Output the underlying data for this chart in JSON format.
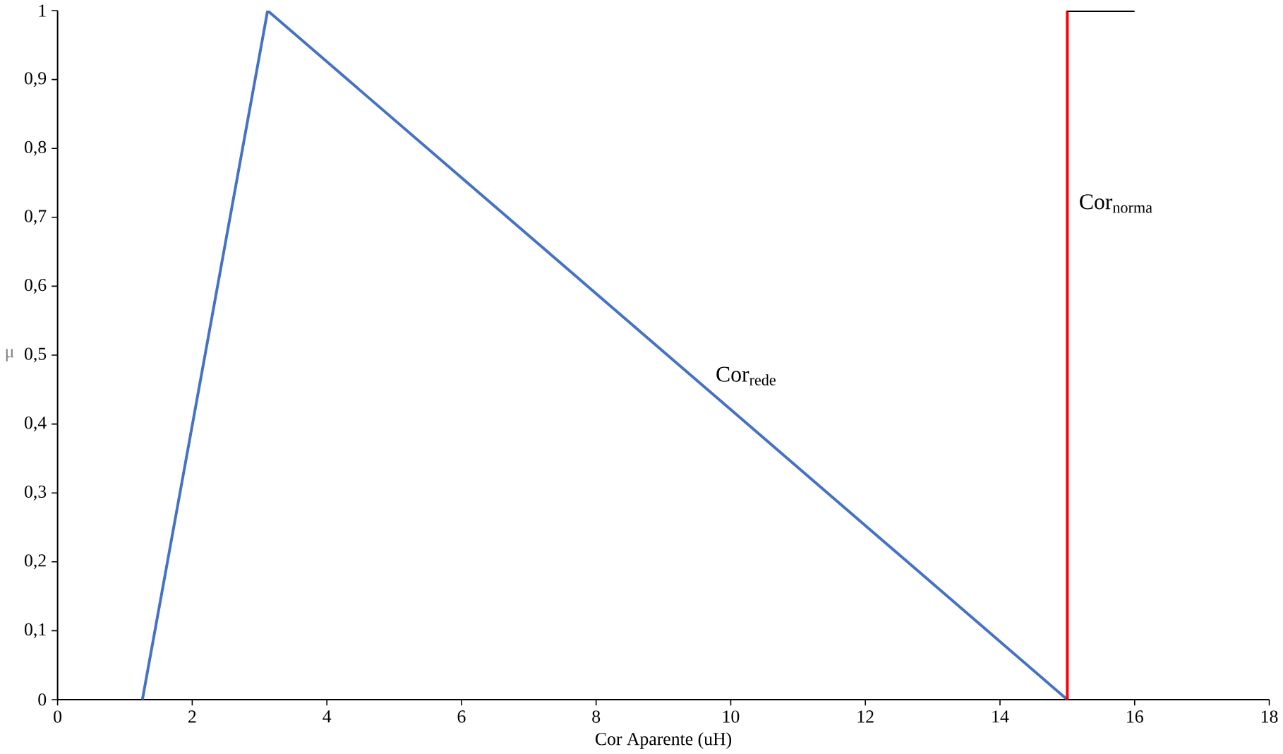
{
  "chart_data": {
    "type": "line",
    "xlabel": "Cor Aparente (uH)",
    "ylabel": "μ",
    "xlim": [
      0,
      18
    ],
    "ylim": [
      0,
      1
    ],
    "xticks": [
      0,
      2,
      4,
      6,
      8,
      10,
      12,
      14,
      16,
      18
    ],
    "yticks": [
      0,
      {
        "value": 0.1,
        "label": "0,1"
      },
      {
        "value": 0.2,
        "label": "0,2"
      },
      {
        "value": 0.3,
        "label": "0,3"
      },
      {
        "value": 0.4,
        "label": "0,4"
      },
      {
        "value": 0.5,
        "label": "0,5"
      },
      {
        "value": 0.6,
        "label": "0,6"
      },
      {
        "value": 0.7,
        "label": "0,7"
      },
      {
        "value": 0.8,
        "label": "0,8"
      },
      {
        "value": 0.9,
        "label": "0,9"
      },
      1
    ],
    "series": [
      {
        "name": "Cor$_{rede}$",
        "color": "#4472c4",
        "x": [
          1.26,
          3.12,
          15
        ],
        "values": [
          0,
          1,
          0
        ]
      },
      {
        "name": "Cor$_{norma}$",
        "color": "#ff0000",
        "x": [
          15,
          15
        ],
        "values": [
          0,
          1
        ]
      },
      {
        "color": "#000000",
        "x": [
          15,
          16
        ],
        "values": [
          1,
          1
        ]
      }
    ],
    "grid": false,
    "legend": false,
    "marker": "none",
    "line_style": "solid"
  }
}
